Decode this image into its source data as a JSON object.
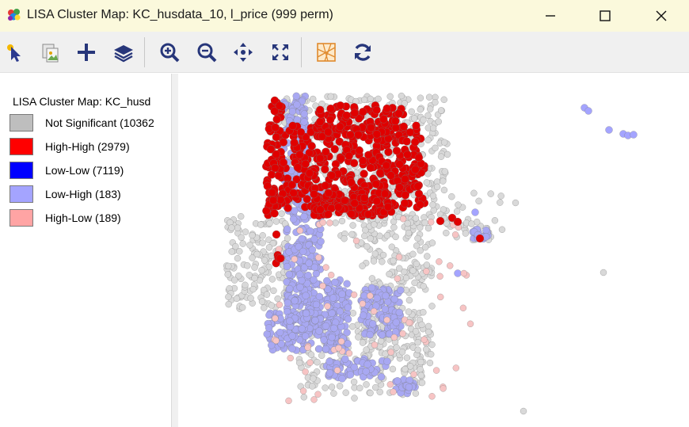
{
  "window": {
    "title": "LISA Cluster Map: KC_husdata_10, l_price (999 perm)"
  },
  "window_controls": {
    "minimize": "minimize-icon",
    "maximize": "maximize-icon",
    "close": "close-icon"
  },
  "toolbar": {
    "tools": [
      {
        "name": "select-tool-icon"
      },
      {
        "name": "copy-image-icon"
      },
      {
        "name": "add-icon"
      },
      {
        "name": "layers-icon"
      },
      {
        "name": "zoom-in-icon"
      },
      {
        "name": "zoom-out-icon"
      },
      {
        "name": "pan-icon"
      },
      {
        "name": "fit-extent-icon"
      },
      {
        "name": "basemap-icon"
      },
      {
        "name": "refresh-icon"
      }
    ]
  },
  "legend": {
    "title": "LISA Cluster Map: KC_husd",
    "items": [
      {
        "label": "Not Significant (10362",
        "color": "#bebebe"
      },
      {
        "label": "High-High (2979)",
        "color": "#ff0000"
      },
      {
        "label": "Low-Low (7119)",
        "color": "#0000ff"
      },
      {
        "label": "Low-High (183)",
        "color": "#a4a4ff"
      },
      {
        "label": "High-Low (189)",
        "color": "#ffa4a4"
      }
    ]
  },
  "colors": {
    "not_significant_point": "#d9d9d9",
    "high_high_point": "#e00000",
    "low_low_point": "#a8a8f2",
    "low_high_point": "#a4a4ff",
    "high_low_point": "#f7c4c4",
    "point_stroke": "#7a7a7a"
  }
}
